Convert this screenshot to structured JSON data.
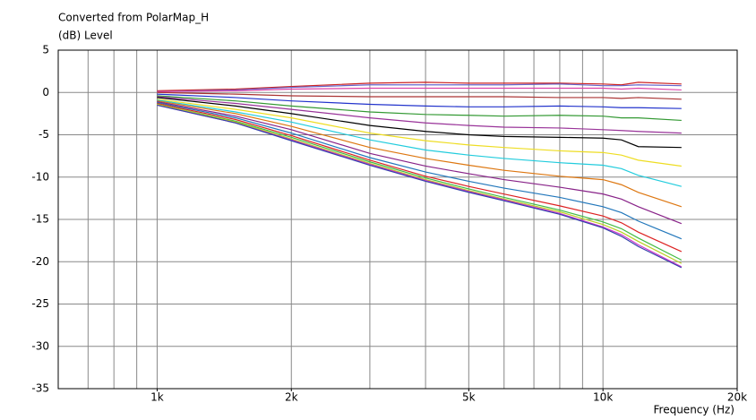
{
  "chart_data": {
    "type": "line",
    "title": "Converted from PolarMap_H",
    "ylabel": "(dB)  Level",
    "xlabel": "Frequency  (Hz)",
    "xscale": "log",
    "xlim": [
      600,
      20000
    ],
    "xticks": [
      {
        "value": 1000,
        "label": "1k"
      },
      {
        "value": 2000,
        "label": "2k"
      },
      {
        "value": 5000,
        "label": "5k"
      },
      {
        "value": 10000,
        "label": "10k"
      },
      {
        "value": 20000,
        "label": "20k"
      }
    ],
    "x_gridlines": [
      700,
      800,
      900,
      1000,
      2000,
      3000,
      4000,
      5000,
      6000,
      7000,
      8000,
      9000,
      10000
    ],
    "ylim": [
      -35,
      5
    ],
    "yticks": [
      -35,
      -30,
      -25,
      -20,
      -15,
      -10,
      -5,
      0,
      5
    ],
    "grid": true,
    "x": [
      1000,
      1500,
      2000,
      3000,
      4000,
      5000,
      6000,
      8000,
      10000,
      11000,
      12000,
      15000
    ],
    "series": [
      {
        "color": "#cc2222",
        "values": [
          0.2,
          0.4,
          0.7,
          1.1,
          1.2,
          1.1,
          1.1,
          1.1,
          1.0,
          0.9,
          1.2,
          1.0
        ]
      },
      {
        "color": "#6666cc",
        "values": [
          0.1,
          0.3,
          0.6,
          0.9,
          0.9,
          0.9,
          0.9,
          1.0,
          0.8,
          0.8,
          0.9,
          0.8
        ]
      },
      {
        "color": "#dd44aa",
        "values": [
          0.1,
          0.2,
          0.4,
          0.5,
          0.5,
          0.5,
          0.5,
          0.5,
          0.5,
          0.4,
          0.5,
          0.3
        ]
      },
      {
        "color": "#aa3333",
        "values": [
          0.0,
          -0.2,
          -0.4,
          -0.5,
          -0.5,
          -0.5,
          -0.5,
          -0.6,
          -0.6,
          -0.7,
          -0.6,
          -0.8
        ]
      },
      {
        "color": "#2233cc",
        "values": [
          -0.2,
          -0.6,
          -1.0,
          -1.4,
          -1.6,
          -1.7,
          -1.7,
          -1.6,
          -1.7,
          -1.8,
          -1.8,
          -1.9
        ]
      },
      {
        "color": "#339933",
        "values": [
          -0.4,
          -1.0,
          -1.6,
          -2.3,
          -2.6,
          -2.7,
          -2.8,
          -2.7,
          -2.8,
          -3.0,
          -3.0,
          -3.3
        ]
      },
      {
        "color": "#993399",
        "values": [
          -0.5,
          -1.3,
          -2.0,
          -3.0,
          -3.6,
          -3.9,
          -4.1,
          -4.2,
          -4.4,
          -4.5,
          -4.6,
          -4.8
        ]
      },
      {
        "color": "#000000",
        "values": [
          -0.6,
          -1.6,
          -2.5,
          -3.9,
          -4.6,
          -5.0,
          -5.2,
          -5.3,
          -5.4,
          -5.6,
          -6.4,
          -6.5
        ]
      },
      {
        "color": "#eedd22",
        "values": [
          -0.8,
          -2.0,
          -3.0,
          -4.8,
          -5.7,
          -6.2,
          -6.5,
          -6.9,
          -7.1,
          -7.4,
          -8.0,
          -8.7
        ]
      },
      {
        "color": "#22ccdd",
        "values": [
          -0.9,
          -2.3,
          -3.5,
          -5.6,
          -6.8,
          -7.4,
          -7.8,
          -8.3,
          -8.6,
          -9.0,
          -9.8,
          -11.1
        ]
      },
      {
        "color": "#dd7711",
        "values": [
          -1.0,
          -2.5,
          -4.0,
          -6.5,
          -7.8,
          -8.6,
          -9.2,
          -9.9,
          -10.3,
          -10.9,
          -11.8,
          -13.5
        ]
      },
      {
        "color": "#882288",
        "values": [
          -1.1,
          -2.8,
          -4.4,
          -7.2,
          -8.7,
          -9.6,
          -10.3,
          -11.2,
          -12.0,
          -12.6,
          -13.5,
          -15.5
        ]
      },
      {
        "color": "#2277bb",
        "values": [
          -1.2,
          -3.0,
          -4.8,
          -7.7,
          -9.4,
          -10.5,
          -11.3,
          -12.4,
          -13.5,
          -14.2,
          -15.2,
          -17.3
        ]
      },
      {
        "color": "#dd2222",
        "values": [
          -1.3,
          -3.2,
          -5.1,
          -8.0,
          -9.9,
          -11.1,
          -12.0,
          -13.4,
          -14.6,
          -15.4,
          -16.5,
          -18.8
        ]
      },
      {
        "color": "#44bb44",
        "values": [
          -1.4,
          -3.4,
          -5.3,
          -8.2,
          -10.1,
          -11.4,
          -12.4,
          -13.9,
          -15.3,
          -16.1,
          -17.2,
          -19.8
        ]
      },
      {
        "color": "#bbcc22",
        "values": [
          -1.4,
          -3.5,
          -5.5,
          -8.4,
          -10.3,
          -11.6,
          -12.6,
          -14.1,
          -15.6,
          -16.5,
          -17.6,
          -20.2
        ]
      },
      {
        "color": "#cc33cc",
        "values": [
          -1.5,
          -3.6,
          -5.6,
          -8.5,
          -10.4,
          -11.7,
          -12.7,
          -14.3,
          -15.9,
          -16.8,
          -18.0,
          -20.6
        ]
      },
      {
        "color": "#3344aa",
        "values": [
          -1.5,
          -3.6,
          -5.7,
          -8.6,
          -10.5,
          -11.8,
          -12.8,
          -14.4,
          -16.0,
          -17.0,
          -18.2,
          -20.7
        ]
      }
    ]
  }
}
